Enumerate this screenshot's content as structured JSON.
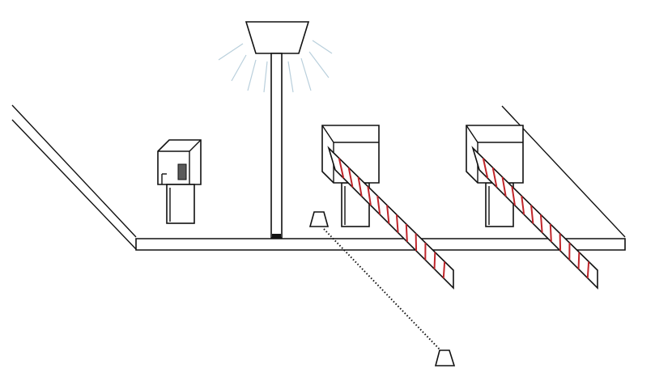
{
  "diagram": {
    "description_free": true,
    "colors": {
      "outline": "#111111",
      "barrier_stripe": "#c0262b",
      "light_ray": "#b9cfdc",
      "sensor_fill": "#5a5a5a",
      "background": "#ffffff"
    },
    "icons": [
      "street-lamp-icon",
      "ticket-machine-icon",
      "barrier-gate-icon",
      "traffic-cone-icon"
    ],
    "parts": {
      "lamp": {
        "present": true
      },
      "ticket_machine": {
        "present": true
      },
      "barrier_gates": 2,
      "cones": 2
    }
  }
}
